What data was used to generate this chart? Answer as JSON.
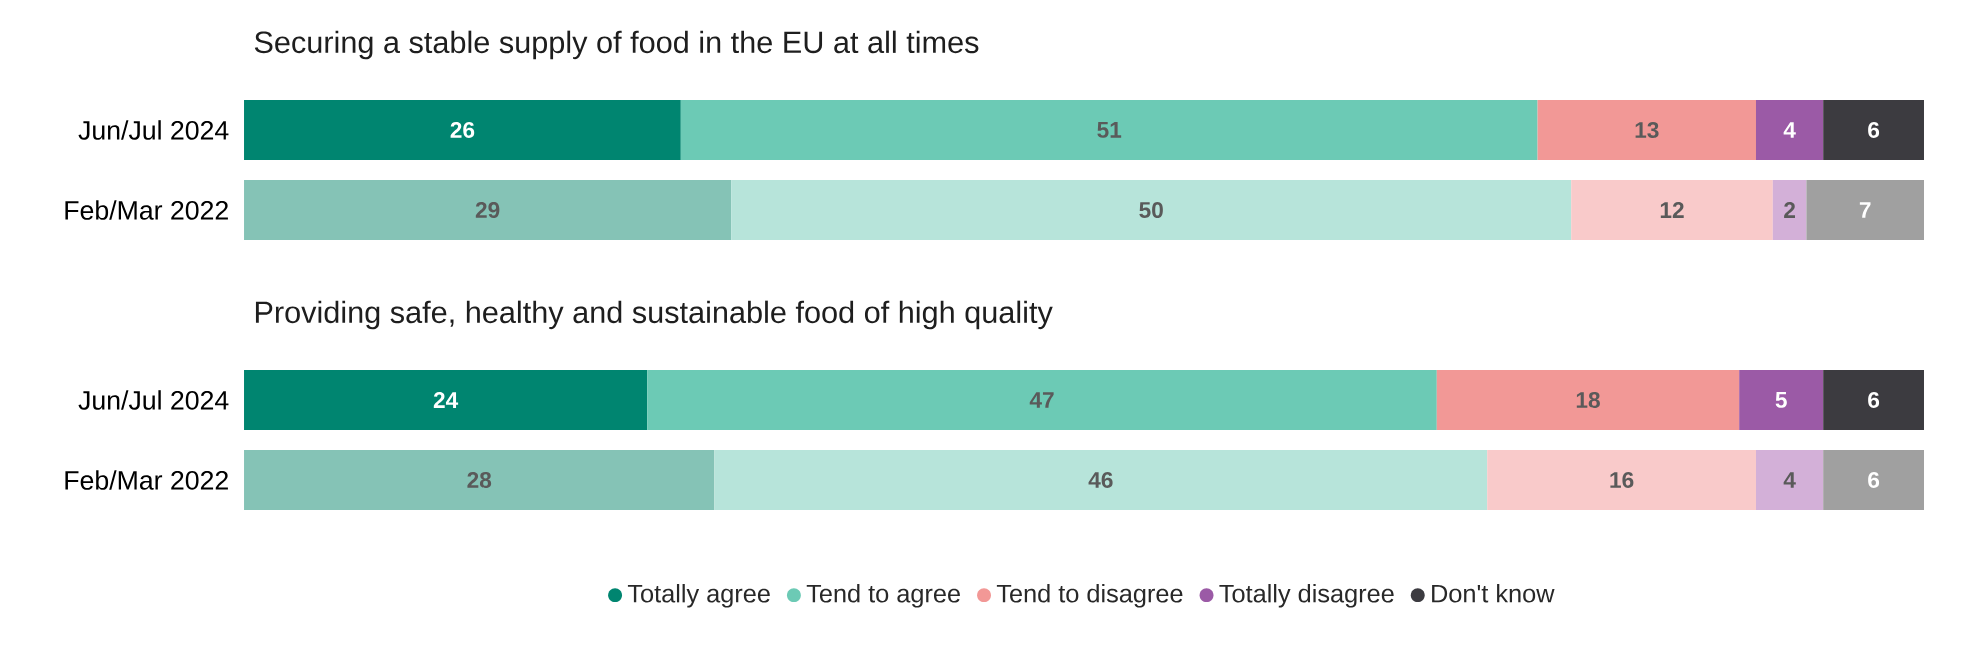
{
  "chart_data": [
    {
      "type": "bar",
      "orientation": "horizontal",
      "stacked": true,
      "title": "Securing a stable supply of food in the EU at all times",
      "categories": [
        "Jun/Jul 2024",
        "Feb/Mar 2022"
      ],
      "xlim": [
        0,
        100
      ],
      "tick_labels": "y",
      "data_labels": true,
      "series": [
        {
          "colors": [
            "#008570",
            "#85c3b6"
          ],
          "values": [
            26,
            29
          ]
        },
        {
          "colors": [
            "#6ccab5",
            "#b7e4da"
          ],
          "values": [
            51,
            50
          ]
        },
        {
          "colors": [
            "#f29896",
            "#f9caca"
          ],
          "values": [
            13,
            12
          ]
        },
        {
          "colors": [
            "#9b5aa6",
            "#d3b0d8"
          ],
          "values": [
            4,
            2
          ]
        },
        {
          "colors": [
            "#3c3b40",
            "#a0a0a0"
          ],
          "values": [
            6,
            7
          ]
        }
      ]
    },
    {
      "type": "bar",
      "orientation": "horizontal",
      "stacked": true,
      "title": "Providing safe, healthy and sustainable food of high quality",
      "categories": [
        "Jun/Jul 2024",
        "Feb/Mar 2022"
      ],
      "xlim": [
        0,
        100
      ],
      "tick_labels": "y",
      "data_labels": true,
      "legend": "bottom",
      "series": [
        {
          "name": "Totally agree",
          "colors": [
            "#008570",
            "#85c3b6"
          ],
          "values": [
            24,
            28
          ]
        },
        {
          "name": "Tend to agree",
          "colors": [
            "#6ccab5",
            "#b7e4da"
          ],
          "values": [
            47,
            46
          ]
        },
        {
          "name": "Tend to disagree",
          "colors": [
            "#f29896",
            "#f9caca"
          ],
          "values": [
            18,
            16
          ]
        },
        {
          "name": "Totally disagree",
          "colors": [
            "#9b5aa6",
            "#d3b0d8"
          ],
          "values": [
            5,
            4
          ]
        },
        {
          "name": "Don't know",
          "colors": [
            "#3c3b40",
            "#a0a0a0"
          ],
          "values": [
            6,
            6
          ]
        }
      ]
    }
  ]
}
